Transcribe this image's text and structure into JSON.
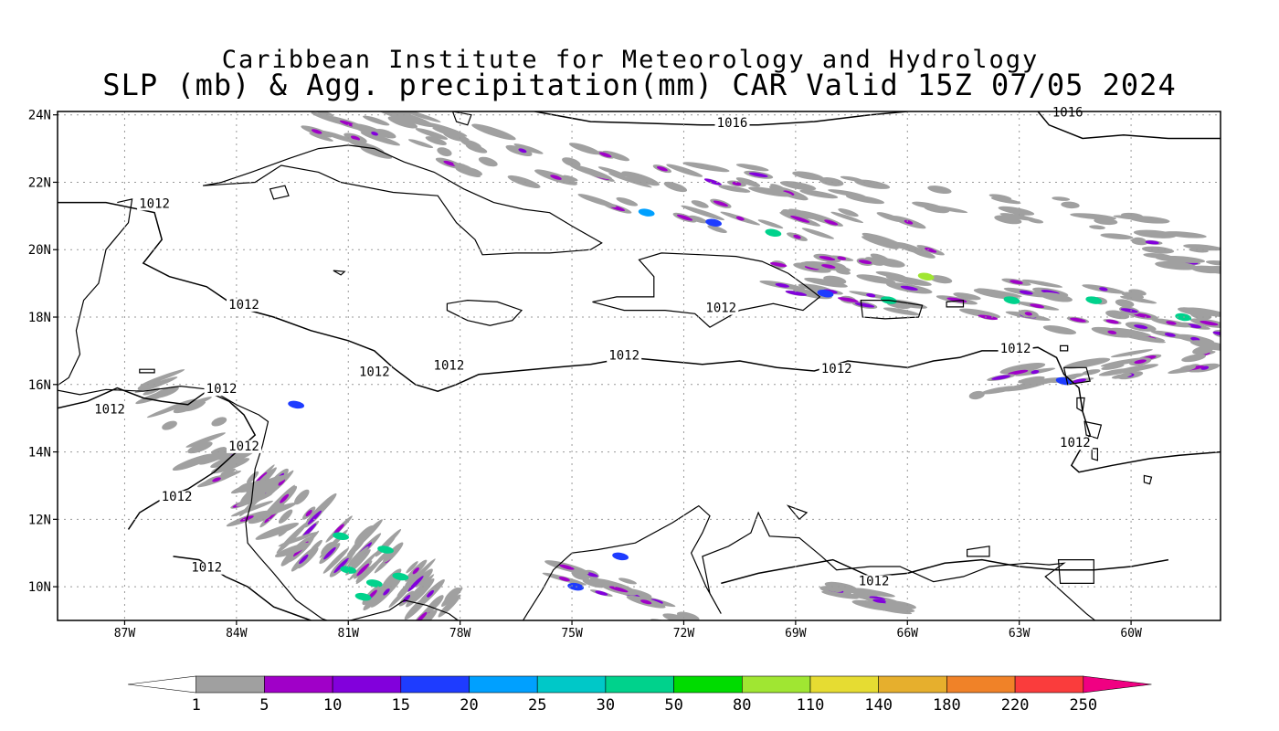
{
  "title": {
    "line1": "Caribbean Institute for Meteorology and Hydrology",
    "line2": "SLP (mb) & Agg. precipitation(mm) CAR Valid 15Z 07/05 2024"
  },
  "map": {
    "lat_labels": [
      "24N",
      "22N",
      "20N",
      "18N",
      "16N",
      "14N",
      "12N",
      "10N"
    ],
    "lon_labels": [
      "87W",
      "84W",
      "81W",
      "78W",
      "75W",
      "72W",
      "69W",
      "66W",
      "63W",
      "60W"
    ],
    "lat_range": [
      9,
      24.1
    ],
    "lon_range": [
      -88.8,
      -57.6
    ],
    "isobar_labels": [
      {
        "text": "1016",
        "lon": -70.7,
        "lat": 23.7
      },
      {
        "text": "1016",
        "lon": -61.7,
        "lat": 24.0
      },
      {
        "text": "1012",
        "lon": -86.2,
        "lat": 21.3
      },
      {
        "text": "1012",
        "lon": -83.8,
        "lat": 18.3
      },
      {
        "text": "1012",
        "lon": -80.3,
        "lat": 16.3
      },
      {
        "text": "1012",
        "lon": -78.3,
        "lat": 16.5
      },
      {
        "text": "1012",
        "lon": -73.6,
        "lat": 16.8
      },
      {
        "text": "1012",
        "lon": -71.0,
        "lat": 18.2
      },
      {
        "text": "1012",
        "lon": -67.9,
        "lat": 16.4
      },
      {
        "text": "1012",
        "lon": -63.1,
        "lat": 17.0
      },
      {
        "text": "1012",
        "lon": -61.5,
        "lat": 14.2
      },
      {
        "text": "1012",
        "lon": -84.4,
        "lat": 15.8
      },
      {
        "text": "1012",
        "lon": -87.4,
        "lat": 15.2
      },
      {
        "text": "1012",
        "lon": -83.8,
        "lat": 14.1
      },
      {
        "text": "1012",
        "lon": -85.6,
        "lat": 12.6
      },
      {
        "text": "1012",
        "lon": -84.8,
        "lat": 10.5
      },
      {
        "text": "1012",
        "lon": -66.9,
        "lat": 10.1
      }
    ]
  },
  "colorbar": {
    "labels": [
      "1",
      "5",
      "10",
      "15",
      "20",
      "25",
      "30",
      "50",
      "80",
      "110",
      "140",
      "180",
      "220",
      "250"
    ],
    "colors": [
      "#ffffff",
      "#a0a0a0",
      "#a000c8",
      "#8200dc",
      "#1e3cff",
      "#00a0ff",
      "#00c8c8",
      "#00d28c",
      "#00dc00",
      "#a0e632",
      "#e6dc32",
      "#e6af2d",
      "#f08228",
      "#fa3c3c",
      "#f00082"
    ]
  }
}
